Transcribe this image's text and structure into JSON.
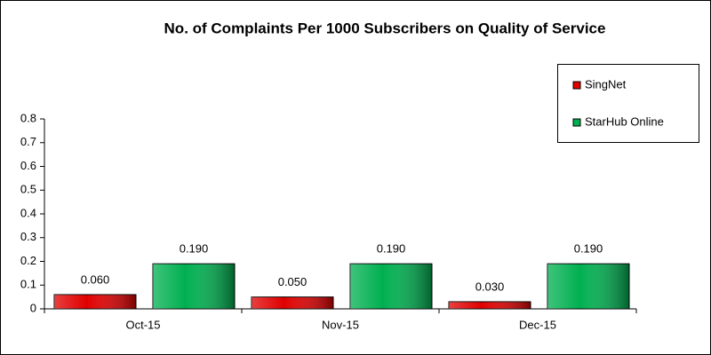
{
  "chart_data": {
    "type": "bar",
    "title": "No. of Complaints Per 1000 Subscribers on Quality of Service",
    "categories": [
      "Oct-15",
      "Nov-15",
      "Dec-15"
    ],
    "series": [
      {
        "name": "SingNet",
        "color": "#e00000",
        "values": [
          0.06,
          0.05,
          0.03
        ],
        "value_labels": [
          "0.060",
          "0.050",
          "0.030"
        ]
      },
      {
        "name": "StarHub Online",
        "color": "#00b050",
        "values": [
          0.19,
          0.19,
          0.19
        ],
        "value_labels": [
          "0.190",
          "0.190",
          "0.190"
        ]
      }
    ],
    "ylim": [
      0,
      0.8
    ],
    "yticks": [
      0,
      0.1,
      0.2,
      0.3,
      0.4,
      0.5,
      0.6,
      0.7,
      0.8
    ],
    "grid": false,
    "legend": "top-right"
  }
}
